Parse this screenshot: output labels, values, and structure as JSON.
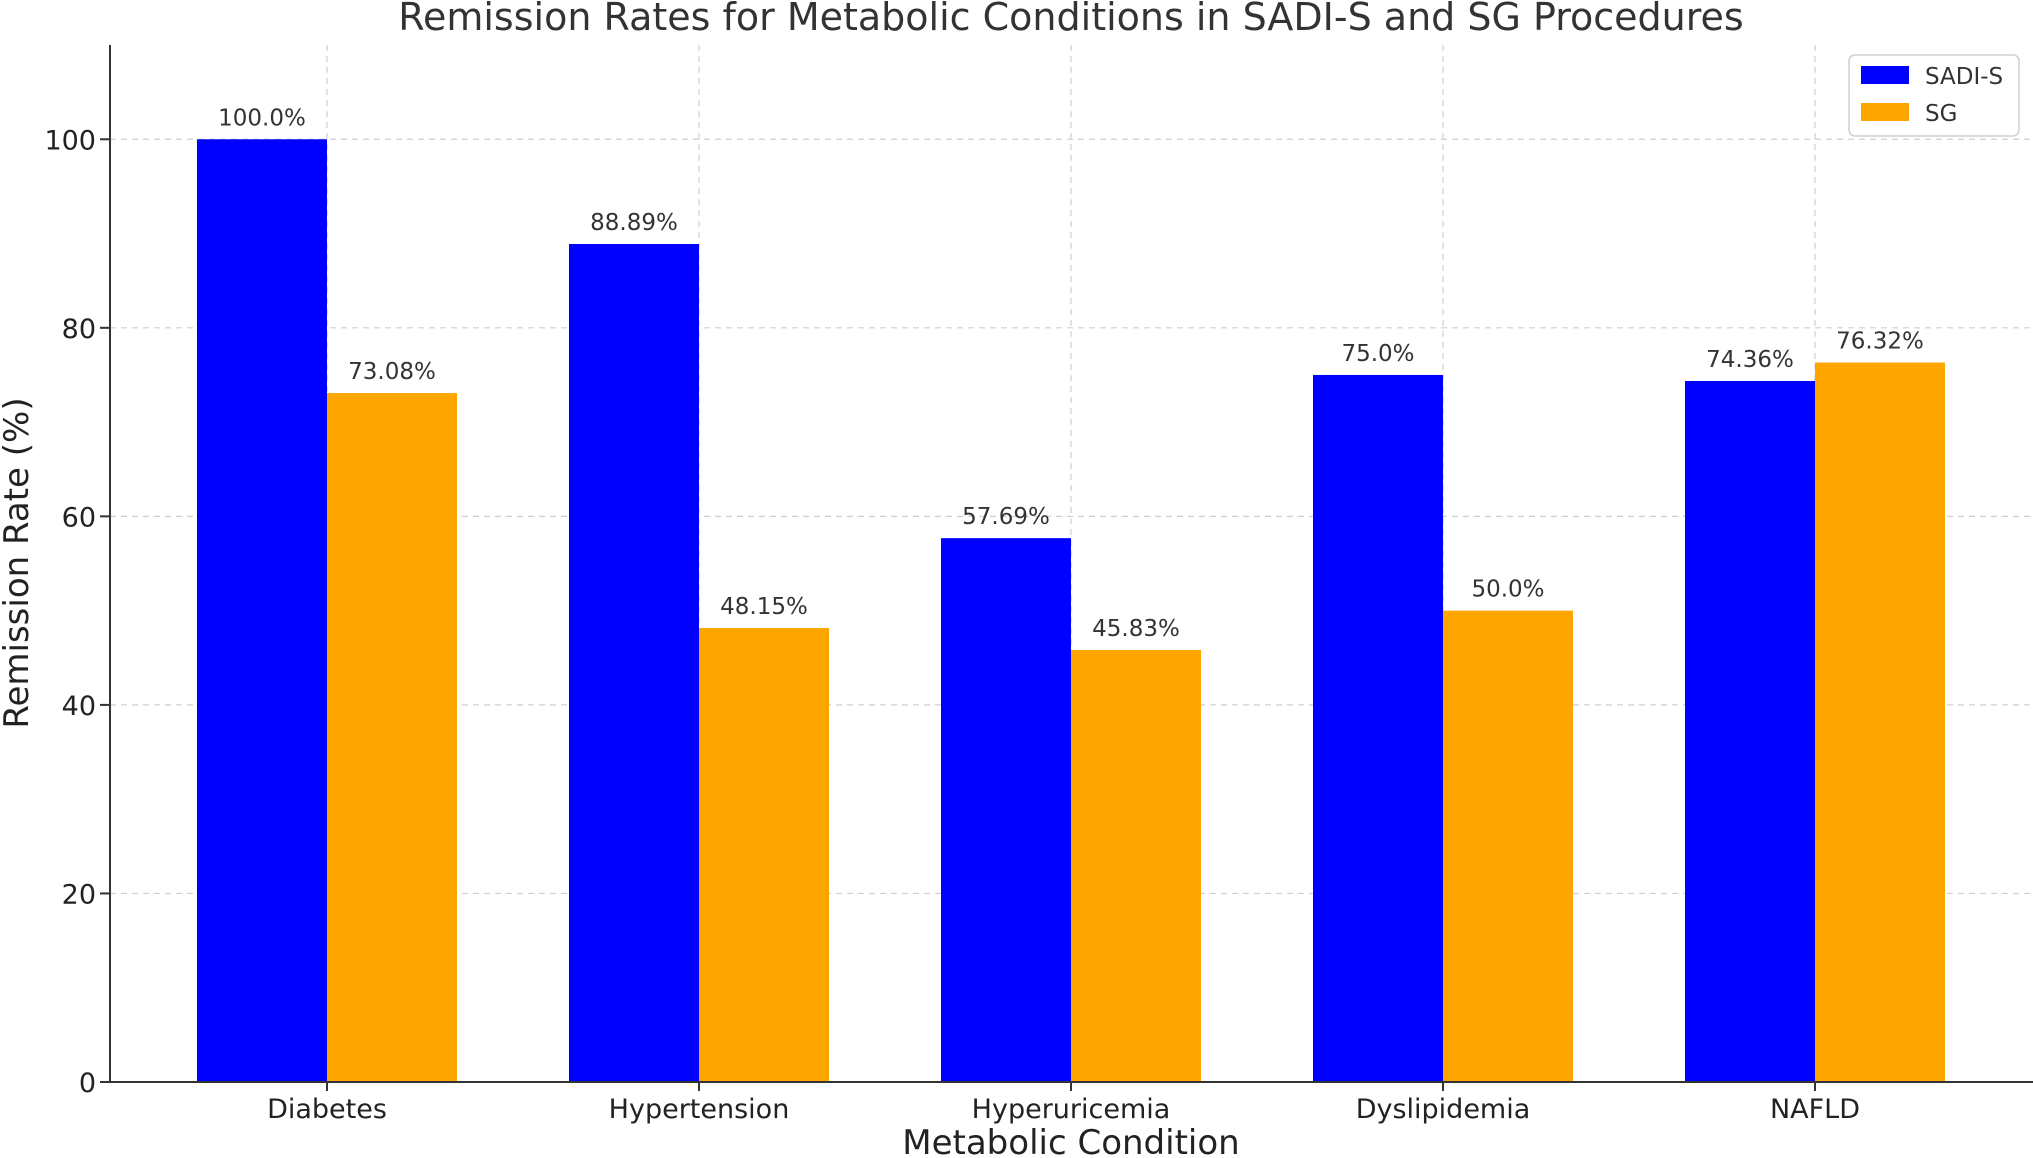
{
  "chart_data": {
    "type": "bar",
    "title": "Remission Rates for Metabolic Conditions in SADI-S and SG Procedures",
    "xlabel": "Metabolic Condition",
    "ylabel": "Remission Rate (%)",
    "categories": [
      "Diabetes",
      "Hypertension",
      "Hyperuricemia",
      "Dyslipidemia",
      "NAFLD"
    ],
    "series": [
      {
        "name": "SADI-S",
        "color": "#0000ff",
        "values": [
          100.0,
          88.89,
          57.69,
          75.0,
          74.36
        ],
        "labels": [
          "100.0%",
          "88.89%",
          "57.69%",
          "75.0%",
          "74.36%"
        ]
      },
      {
        "name": "SG",
        "color": "#ffa500",
        "values": [
          73.08,
          48.15,
          45.83,
          50.0,
          76.32
        ],
        "labels": [
          "73.08%",
          "48.15%",
          "45.83%",
          "50.0%",
          "76.32%"
        ]
      }
    ],
    "ylim": [
      0,
      110
    ],
    "yticks": [
      0,
      20,
      40,
      60,
      80,
      100
    ],
    "grid": true,
    "legend_position": "top-right"
  }
}
